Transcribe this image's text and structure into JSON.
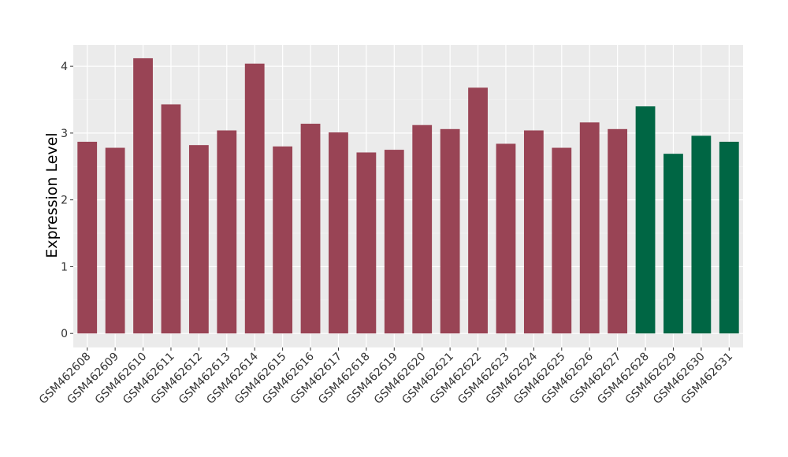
{
  "chart_data": {
    "type": "bar",
    "y_label": "Expression Level",
    "categories": [
      "GSM462608",
      "GSM462609",
      "GSM462610",
      "GSM462611",
      "GSM462612",
      "GSM462613",
      "GSM462614",
      "GSM462615",
      "GSM462616",
      "GSM462617",
      "GSM462618",
      "GSM462619",
      "GSM462620",
      "GSM462621",
      "GSM462622",
      "GSM462623",
      "GSM462624",
      "GSM462625",
      "GSM462626",
      "GSM462627",
      "GSM462628",
      "GSM462629",
      "GSM462630",
      "GSM462631"
    ],
    "values": [
      2.87,
      2.78,
      4.12,
      3.43,
      2.82,
      3.04,
      4.04,
      2.8,
      3.14,
      3.01,
      2.71,
      2.75,
      3.12,
      3.06,
      3.68,
      2.84,
      3.04,
      2.78,
      3.16,
      3.06,
      3.4,
      2.69,
      2.96,
      2.87
    ],
    "colors": [
      "#994455",
      "#994455",
      "#994455",
      "#994455",
      "#994455",
      "#994455",
      "#994455",
      "#994455",
      "#994455",
      "#994455",
      "#994455",
      "#994455",
      "#994455",
      "#994455",
      "#994455",
      "#994455",
      "#994455",
      "#994455",
      "#994455",
      "#994455",
      "#006644",
      "#006644",
      "#006644",
      "#006644"
    ],
    "ylim": [
      -0.21,
      4.32
    ],
    "yticks": [
      0,
      1,
      2,
      3,
      4
    ],
    "grid": true
  }
}
